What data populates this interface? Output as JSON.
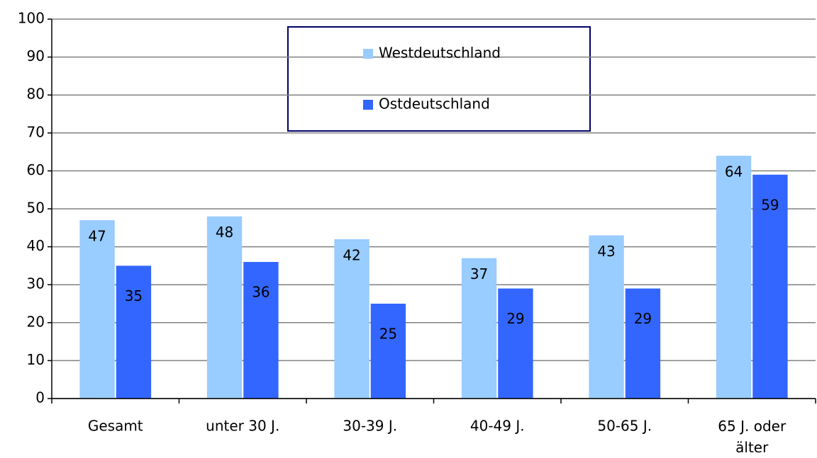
{
  "chart_data": {
    "type": "bar",
    "categories": [
      "Gesamt",
      "unter 30 J.",
      "30-39 J.",
      "40-49 J.",
      "50-65 J.",
      "65 J. oder älter"
    ],
    "series": [
      {
        "name": "Westdeutschland",
        "color": "#99ccff",
        "values": [
          47,
          48,
          42,
          37,
          43,
          64
        ]
      },
      {
        "name": "Ostdeutschland",
        "color": "#3366ff",
        "values": [
          35,
          36,
          25,
          29,
          29,
          59
        ]
      }
    ],
    "ylim": [
      0,
      100
    ],
    "yticks": [
      0,
      10,
      20,
      30,
      40,
      50,
      60,
      70,
      80,
      90,
      100
    ],
    "grid": true,
    "legend": "top"
  }
}
